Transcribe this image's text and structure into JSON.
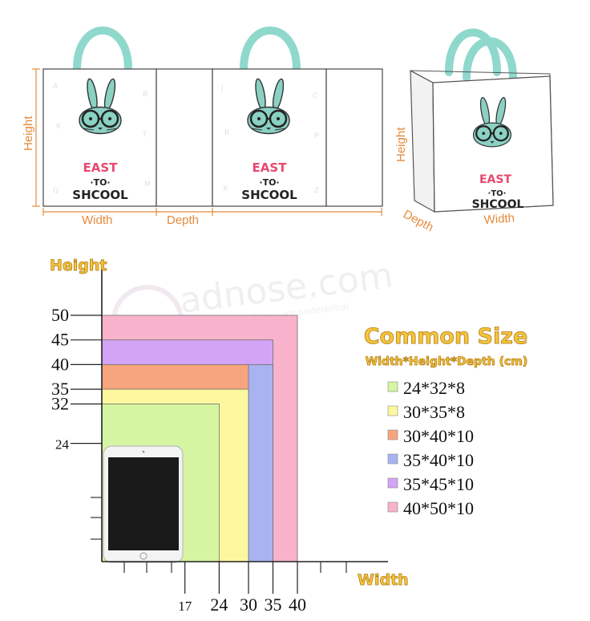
{
  "bag_diagram": {
    "labels": {
      "height": "Height",
      "width": "Width",
      "depth": "Depth"
    },
    "print": {
      "line1": "EAST",
      "line2": "·TO·",
      "line3": "SHCOOL"
    },
    "colors": {
      "handle": "#8fd8cc",
      "bunny": "#8ad1c4",
      "dim_line": "#e58a3c",
      "letters": [
        "#e8486e",
        "#f2a531",
        "#222222"
      ]
    }
  },
  "watermark": {
    "brand": "adnose.com",
    "tagline": "There are preferential"
  },
  "size_chart": {
    "axis_labels": {
      "y": "Height",
      "x": "Width"
    },
    "title": "Common Size",
    "subtitle": "Width*Height*Depth (cm)",
    "y_ticks": [
      24,
      32,
      35,
      40,
      45,
      50
    ],
    "x_ticks": [
      17,
      24,
      30,
      35,
      40
    ],
    "sizes": [
      {
        "label": "24*32*8",
        "width": 24,
        "height": 32,
        "color": "#d6f5a3"
      },
      {
        "label": "30*35*8",
        "width": 30,
        "height": 35,
        "color": "#fdf8a0"
      },
      {
        "label": "30*40*10",
        "width": 30,
        "height": 40,
        "color": "#f7a57e"
      },
      {
        "label": "35*40*10",
        "width": 35,
        "height": 40,
        "color": "#a9b3f2"
      },
      {
        "label": "35*45*10",
        "width": 35,
        "height": 45,
        "color": "#d3a4f5"
      },
      {
        "label": "40*50*10",
        "width": 40,
        "height": 50,
        "color": "#f9b2cc"
      }
    ],
    "tablet": {
      "width": 17,
      "height": 24
    }
  }
}
